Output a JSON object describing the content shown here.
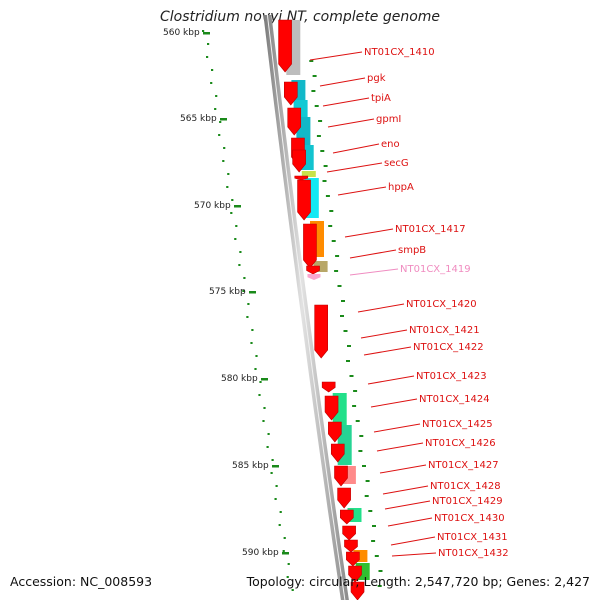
{
  "title": "Clostridium novyi NT, complete genome",
  "footer": {
    "accession": "Accession: NC_008593",
    "summary": "Topology: circular; Length: 2,547,720 bp; Genes: 2,427"
  },
  "ticks": [
    "560 kbp",
    "565 kbp",
    "570 kbp",
    "575 kbp",
    "580 kbp",
    "585 kbp",
    "590 kbp"
  ],
  "labels": [
    {
      "text": "NT01CX_1410",
      "color": "#dd1111"
    },
    {
      "text": "pgk",
      "color": "#dd1111"
    },
    {
      "text": "tpiA",
      "color": "#dd1111"
    },
    {
      "text": "gpmI",
      "color": "#dd1111"
    },
    {
      "text": "eno",
      "color": "#dd1111"
    },
    {
      "text": "secG",
      "color": "#dd1111"
    },
    {
      "text": "hppA",
      "color": "#dd1111"
    },
    {
      "text": "NT01CX_1417",
      "color": "#dd1111"
    },
    {
      "text": "smpB",
      "color": "#dd1111"
    },
    {
      "text": "NT01CX_1419",
      "color": "#f08cc0"
    },
    {
      "text": "NT01CX_1420",
      "color": "#dd1111"
    },
    {
      "text": "NT01CX_1421",
      "color": "#dd1111"
    },
    {
      "text": "NT01CX_1422",
      "color": "#dd1111"
    },
    {
      "text": "NT01CX_1423",
      "color": "#dd1111"
    },
    {
      "text": "NT01CX_1424",
      "color": "#dd1111"
    },
    {
      "text": "NT01CX_1425",
      "color": "#dd1111"
    },
    {
      "text": "NT01CX_1426",
      "color": "#dd1111"
    },
    {
      "text": "NT01CX_1427",
      "color": "#dd1111"
    },
    {
      "text": "NT01CX_1428",
      "color": "#dd1111"
    },
    {
      "text": "NT01CX_1429",
      "color": "#dd1111"
    },
    {
      "text": "NT01CX_1430",
      "color": "#dd1111"
    },
    {
      "text": "NT01CX_1431",
      "color": "#dd1111"
    },
    {
      "text": "NT01CX_1432",
      "color": "#dd1111"
    }
  ],
  "colors": {
    "gene": "#ff0000",
    "rna": "#f9a6cf",
    "backbone": "#999999",
    "gc_dots": "#1a8a1a"
  }
}
